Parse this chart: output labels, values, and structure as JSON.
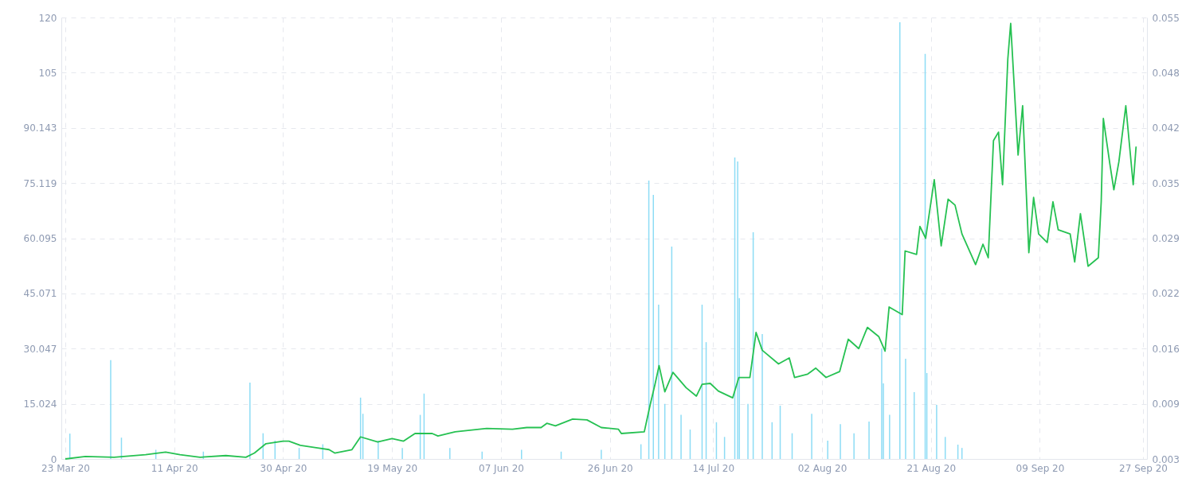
{
  "chart_data": {
    "type": "bar",
    "xlim": [
      "2020-03-23",
      "2020-09-27"
    ],
    "xticks": [
      {
        "value": "2020-03-23",
        "label": "23 Mar 20"
      },
      {
        "value": "2020-04-11",
        "label": "11 Apr 20"
      },
      {
        "value": "2020-04-30",
        "label": "30 Apr 20"
      },
      {
        "value": "2020-05-19",
        "label": "19 May 20"
      },
      {
        "value": "2020-06-07",
        "label": "07 Jun 20"
      },
      {
        "value": "2020-06-26",
        "label": "26 Jun 20"
      },
      {
        "value": "2020-07-14",
        "label": "14 Jul 20"
      },
      {
        "value": "2020-08-02",
        "label": "02 Aug 20"
      },
      {
        "value": "2020-08-21",
        "label": "21 Aug 20"
      },
      {
        "value": "2020-09-09",
        "label": "09 Sep 20"
      },
      {
        "value": "2020-09-27",
        "label": "27 Sep 20"
      }
    ],
    "ylim": [
      0,
      120.19
    ],
    "yticks": [
      0,
      15.024,
      30.047,
      45.071,
      60.095,
      75.119,
      90.143,
      {
        "value": 105.17,
        "label": "105"
      },
      {
        "value": 120.19,
        "label": "120"
      }
    ],
    "y2lim": [
      0.003,
      0.055
    ],
    "y2ticks": [
      0.003,
      {
        "value": 0.0095,
        "label": "0.009"
      },
      0.016,
      {
        "value": 0.0225,
        "label": "0.022"
      },
      0.029,
      {
        "value": 0.0355,
        "label": "0.035"
      },
      0.042,
      {
        "value": 0.0485,
        "label": "0.048"
      },
      0.055
    ],
    "grid": true,
    "series": [
      {
        "color": "#8ddcf5",
        "x": [
          "2020-03-23T19:00",
          "2020-03-30T22:00",
          "2020-04-01T19:00",
          "2020-04-07T19:00",
          "2020-04-16T02:00",
          "2020-04-24T05:00",
          "2020-04-26T12:00",
          "2020-04-28T14:00",
          "2020-05-02T19:00",
          "2020-05-06T22:00",
          "2020-05-13T12:00",
          "2020-05-13T22:00",
          "2020-05-16T14:00",
          "2020-05-20T19:00",
          "2020-05-23T22:00",
          "2020-05-24T14:00",
          "2020-05-29T02:00",
          "2020-06-03T17:00",
          "2020-06-10T14:00",
          "2020-06-17T12:00",
          "2020-06-24T12:00",
          "2020-07-01T10:00",
          "2020-07-02T19:00",
          "2020-07-03T14:00",
          "2020-07-04T12:00",
          "2020-07-05T14:00",
          "2020-07-06T19:00",
          "2020-07-08T10:00",
          "2020-07-10T00:00",
          "2020-07-12T02:00",
          "2020-07-12T19:00",
          "2020-07-14T14:00",
          "2020-07-16T00:00",
          "2020-07-17T19:00",
          "2020-07-18T07:00",
          "2020-07-18T14:00",
          "2020-07-20T02:00",
          "2020-07-21T00:00",
          "2020-07-22T14:00",
          "2020-07-24T07:00",
          "2020-07-25T17:00",
          "2020-07-27T19:00",
          "2020-07-31T05:00",
          "2020-08-03T00:00",
          "2020-08-05T05:00",
          "2020-08-07T14:00",
          "2020-08-10T05:00",
          "2020-08-12T10:00",
          "2020-08-12T17:00",
          "2020-08-13T19:00",
          "2020-08-15T14:00",
          "2020-08-16T14:00",
          "2020-08-18T02:00",
          "2020-08-20T00:00",
          "2020-08-20T07:00",
          "2020-08-22T00:00",
          "2020-08-23T12:00",
          "2020-08-25T17:00",
          "2020-08-26T10:00"
        ],
        "values": [
          6.9,
          26.9,
          5.8,
          2.5,
          2.0,
          20.8,
          7.0,
          5.0,
          3.0,
          4.0,
          16.7,
          12.3,
          5.0,
          3.0,
          12.0,
          17.8,
          3.0,
          2.0,
          2.5,
          2.0,
          2.5,
          4.0,
          75.8,
          71.9,
          42.0,
          15.0,
          57.8,
          12,
          8,
          42.0,
          31.8,
          10,
          6,
          82.1,
          81.0,
          43.8,
          15,
          61.7,
          34.0,
          10,
          14.5,
          7,
          12.3,
          5,
          9.5,
          7,
          10.2,
          30.1,
          20.6,
          12,
          118.9,
          27.3,
          18.2,
          110.3,
          23.4,
          14.7,
          6,
          3.9,
          3.0
        ]
      },
      {
        "type": "line",
        "axis": "y2",
        "color": "#26c152",
        "x": [
          "2020-03-23",
          "2020-03-26T12:00",
          "2020-03-31T12:00",
          "2020-04-06",
          "2020-04-09T12:00",
          "2020-04-12",
          "2020-04-15T12:00",
          "2020-04-20",
          "2020-04-23T12:00",
          "2020-04-25",
          "2020-04-27",
          "2020-04-30",
          "2020-05-01",
          "2020-05-03",
          "2020-05-06",
          "2020-05-08",
          "2020-05-09",
          "2020-05-12",
          "2020-05-13T12:00",
          "2020-05-16T12:00",
          "2020-05-19",
          "2020-05-21",
          "2020-05-23",
          "2020-05-26",
          "2020-05-27",
          "2020-05-30",
          "2020-06-04T12:00",
          "2020-06-09",
          "2020-06-11T12:00",
          "2020-06-14",
          "2020-06-15",
          "2020-06-16T12:00",
          "2020-06-19T12:00",
          "2020-06-22",
          "2020-06-24T12:00",
          "2020-06-27T12:00",
          "2020-06-28",
          "2020-07-02",
          "2020-07-03T00:00",
          "2020-07-03T21:00",
          "2020-07-04T14:00",
          "2020-07-05T14:00",
          "2020-07-07T00:00",
          "2020-07-09T07:00",
          "2020-07-11T02:00",
          "2020-07-12T02:00",
          "2020-07-13T12:00",
          "2020-07-14T22:00",
          "2020-07-17T10:00",
          "2020-07-18T12:00",
          "2020-07-20T10:00",
          "2020-07-21T12:00",
          "2020-07-22T14:00",
          "2020-07-25T10:00",
          "2020-07-27T07:00",
          "2020-07-28T05:00",
          "2020-07-30T12:00",
          "2020-07-31T22:00",
          "2020-08-02T17:00",
          "2020-08-05T02:00",
          "2020-08-06T14:00",
          "2020-08-08T10:00",
          "2020-08-09T22:00",
          "2020-08-11T22:00",
          "2020-08-13T00:00",
          "2020-08-13T17:00",
          "2020-08-16T00:00",
          "2020-08-16T12:00",
          "2020-08-18T12:00",
          "2020-08-19T02:00",
          "2020-08-20T02:00",
          "2020-08-21T14:00",
          "2020-08-22T19:00",
          "2020-08-24T00:00",
          "2020-08-25T05:00",
          "2020-08-26T10:00",
          "2020-08-28T19:00",
          "2020-08-30T02:00",
          "2020-08-31T00:00",
          "2020-08-31T22:00",
          "2020-09-01T19:00",
          "2020-09-02T12:00",
          "2020-09-03T10:00",
          "2020-09-03T22:00",
          "2020-09-05T05:00",
          "2020-09-06T00:00",
          "2020-09-07T02:00",
          "2020-09-07T22:00",
          "2020-09-08T19:00",
          "2020-09-10T07:00",
          "2020-09-11T07:00",
          "2020-09-12T05:00",
          "2020-09-14T07:00",
          "2020-09-15T02:00",
          "2020-09-16T02:00",
          "2020-09-17T10:00",
          "2020-09-19T05:00",
          "2020-09-19T17:00",
          "2020-09-20T02:00",
          "2020-09-21T05:00",
          "2020-09-21T22:00",
          "2020-09-22T19:00",
          "2020-09-24T00:00",
          "2020-09-25T07:00",
          "2020-09-25T19:00"
        ],
        "values": [
          0.003,
          0.0033,
          0.0032,
          0.0035,
          0.0038,
          0.0035,
          0.0032,
          0.0034,
          0.0032,
          0.0037,
          0.0048,
          0.0051,
          0.0051,
          0.0046,
          0.0043,
          0.0041,
          0.0037,
          0.0041,
          0.0056,
          0.005,
          0.0054,
          0.0051,
          0.006,
          0.006,
          0.0057,
          0.0062,
          0.0066,
          0.0065,
          0.0067,
          0.0067,
          0.0072,
          0.0069,
          0.0077,
          0.0076,
          0.0067,
          0.0065,
          0.006,
          0.0062,
          0.0093,
          0.0118,
          0.014,
          0.0109,
          0.0132,
          0.0114,
          0.0104,
          0.0118,
          0.0119,
          0.011,
          0.0102,
          0.0126,
          0.0126,
          0.0179,
          0.0158,
          0.0142,
          0.0149,
          0.0126,
          0.013,
          0.0137,
          0.0126,
          0.0133,
          0.0171,
          0.016,
          0.0185,
          0.0174,
          0.0157,
          0.0209,
          0.02,
          0.0275,
          0.0271,
          0.0304,
          0.029,
          0.0359,
          0.0281,
          0.0336,
          0.0329,
          0.0295,
          0.0259,
          0.0283,
          0.0267,
          0.0405,
          0.0415,
          0.0353,
          0.0501,
          0.0543,
          0.0388,
          0.0446,
          0.0273,
          0.0338,
          0.0295,
          0.0285,
          0.0333,
          0.03,
          0.0295,
          0.0262,
          0.0319,
          0.0257,
          0.0267,
          0.0333,
          0.0431,
          0.0378,
          0.0347,
          0.038,
          0.0446,
          0.0353,
          0.0398
        ]
      }
    ]
  }
}
